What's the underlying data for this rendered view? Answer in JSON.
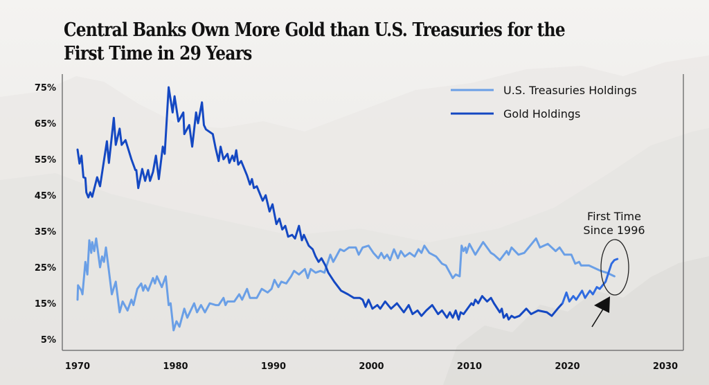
{
  "title": "Central Banks Own More Gold than U.S. Treasuries for the First Time in 29 Years",
  "chart_data": {
    "type": "line",
    "title": "Central Banks Own More Gold than U.S. Treasuries for the First Time in 29 Years",
    "xlabel": "",
    "ylabel": "",
    "xlim": [
      1968.5,
      2032
    ],
    "ylim": [
      2,
      77
    ],
    "x_ticks": [
      1970,
      1980,
      1990,
      2000,
      2010,
      2020,
      2030
    ],
    "x_tick_labels": [
      "1970",
      "1980",
      "1990",
      "2000",
      "2010",
      "2020",
      "2030"
    ],
    "y_ticks": [
      5,
      15,
      25,
      35,
      45,
      55,
      65,
      75
    ],
    "y_tick_labels": [
      "5%",
      "15%",
      "25%",
      "35%",
      "45%",
      "55%",
      "65%",
      "75%"
    ],
    "grid": false,
    "legend_position": "top-right",
    "series": [
      {
        "name": "U.S. Treasuries Holdings",
        "color": "#6a9fe6",
        "points": [
          [
            1970.0,
            16.0
          ],
          [
            1970.05,
            20.0
          ],
          [
            1970.4,
            18.5
          ],
          [
            1970.5,
            17.5
          ],
          [
            1970.8,
            26.5
          ],
          [
            1971.0,
            23.0
          ],
          [
            1971.2,
            32.5
          ],
          [
            1971.4,
            29.0
          ],
          [
            1971.5,
            32.0
          ],
          [
            1971.7,
            29.5
          ],
          [
            1971.9,
            33.0
          ],
          [
            1972.1,
            29.0
          ],
          [
            1972.3,
            25.0
          ],
          [
            1972.5,
            28.0
          ],
          [
            1972.7,
            26.5
          ],
          [
            1972.9,
            30.5
          ],
          [
            1973.2,
            24.0
          ],
          [
            1973.5,
            17.5
          ],
          [
            1973.9,
            21.0
          ],
          [
            1974.3,
            12.5
          ],
          [
            1974.6,
            15.5
          ],
          [
            1975.1,
            13.0
          ],
          [
            1975.5,
            16.0
          ],
          [
            1975.7,
            14.5
          ],
          [
            1976.1,
            19.0
          ],
          [
            1976.5,
            20.5
          ],
          [
            1976.7,
            18.5
          ],
          [
            1976.9,
            20.0
          ],
          [
            1977.2,
            18.5
          ],
          [
            1977.7,
            22.0
          ],
          [
            1977.9,
            20.5
          ],
          [
            1978.1,
            22.5
          ],
          [
            1978.6,
            19.5
          ],
          [
            1979.0,
            22.5
          ],
          [
            1979.3,
            14.5
          ],
          [
            1979.5,
            15.0
          ],
          [
            1979.8,
            7.5
          ],
          [
            1980.1,
            10.0
          ],
          [
            1980.4,
            8.5
          ],
          [
            1980.9,
            13.5
          ],
          [
            1981.2,
            11.0
          ],
          [
            1981.9,
            15.0
          ],
          [
            1982.2,
            12.5
          ],
          [
            1982.6,
            14.5
          ],
          [
            1983.0,
            12.5
          ],
          [
            1983.5,
            15.0
          ],
          [
            1984.1,
            14.5
          ],
          [
            1984.4,
            14.5
          ],
          [
            1984.9,
            16.5
          ],
          [
            1985.1,
            14.5
          ],
          [
            1985.3,
            15.5
          ],
          [
            1986.0,
            15.5
          ],
          [
            1986.5,
            17.5
          ],
          [
            1986.8,
            16.0
          ],
          [
            1987.3,
            19.0
          ],
          [
            1987.6,
            16.5
          ],
          [
            1988.3,
            16.5
          ],
          [
            1988.8,
            19.0
          ],
          [
            1989.4,
            18.0
          ],
          [
            1989.8,
            19.0
          ],
          [
            1990.1,
            21.5
          ],
          [
            1990.5,
            19.5
          ],
          [
            1990.8,
            21.0
          ],
          [
            1991.3,
            20.5
          ],
          [
            1991.8,
            22.5
          ],
          [
            1992.1,
            24.0
          ],
          [
            1992.6,
            23.0
          ],
          [
            1993.2,
            24.5
          ],
          [
            1993.5,
            22.0
          ],
          [
            1993.8,
            24.5
          ],
          [
            1994.3,
            23.5
          ],
          [
            1994.8,
            24.0
          ],
          [
            1995.2,
            23.5
          ],
          [
            1995.5,
            26.0
          ],
          [
            1995.8,
            28.5
          ],
          [
            1996.1,
            26.5
          ],
          [
            1996.4,
            28.0
          ],
          [
            1996.8,
            30.0
          ],
          [
            1997.2,
            29.5
          ],
          [
            1997.7,
            30.5
          ],
          [
            1998.4,
            30.5
          ],
          [
            1998.7,
            28.5
          ],
          [
            1999.1,
            30.5
          ],
          [
            1999.7,
            31.0
          ],
          [
            2000.2,
            29.0
          ],
          [
            2000.7,
            27.5
          ],
          [
            2001.0,
            29.0
          ],
          [
            2001.3,
            27.5
          ],
          [
            2001.6,
            28.5
          ],
          [
            2001.9,
            27.0
          ],
          [
            2002.3,
            30.0
          ],
          [
            2002.7,
            27.5
          ],
          [
            2003.0,
            29.5
          ],
          [
            2003.4,
            28.0
          ],
          [
            2003.9,
            29.0
          ],
          [
            2004.4,
            28.0
          ],
          [
            2004.8,
            30.0
          ],
          [
            2005.1,
            29.0
          ],
          [
            2005.4,
            31.0
          ],
          [
            2005.9,
            29.0
          ],
          [
            2006.6,
            28.0
          ],
          [
            2007.2,
            26.0
          ],
          [
            2007.6,
            25.5
          ],
          [
            2008.3,
            22.0
          ],
          [
            2008.6,
            23.0
          ],
          [
            2009.0,
            22.5
          ],
          [
            2009.2,
            31.0
          ],
          [
            2009.4,
            29.5
          ],
          [
            2009.6,
            30.5
          ],
          [
            2009.7,
            29.0
          ],
          [
            2010.0,
            31.5
          ],
          [
            2010.6,
            28.5
          ],
          [
            2011.4,
            32.0
          ],
          [
            2012.2,
            29.0
          ],
          [
            2012.5,
            28.5
          ],
          [
            2013.1,
            27.0
          ],
          [
            2013.8,
            29.5
          ],
          [
            2014.0,
            28.5
          ],
          [
            2014.3,
            30.5
          ],
          [
            2015.0,
            28.5
          ],
          [
            2015.6,
            29.0
          ],
          [
            2016.8,
            33.0
          ],
          [
            2017.2,
            30.5
          ],
          [
            2018.0,
            31.5
          ],
          [
            2018.8,
            29.5
          ],
          [
            2019.2,
            30.5
          ],
          [
            2019.7,
            28.5
          ],
          [
            2020.4,
            28.5
          ],
          [
            2020.8,
            26.0
          ],
          [
            2021.2,
            26.5
          ],
          [
            2021.4,
            25.5
          ],
          [
            2022.2,
            25.5
          ],
          [
            2023.0,
            24.5
          ],
          [
            2023.4,
            24.0
          ],
          [
            2024.0,
            23.5
          ],
          [
            2024.4,
            23.0
          ],
          [
            2024.8,
            22.5
          ]
        ]
      },
      {
        "name": "Gold Holdings",
        "color": "#1448c2",
        "color_recent": "#2f6be0",
        "points": [
          [
            1970.0,
            57.7
          ],
          [
            1970.2,
            53.8
          ],
          [
            1970.4,
            56.0
          ],
          [
            1970.6,
            50.0
          ],
          [
            1970.8,
            49.8
          ],
          [
            1970.9,
            45.8
          ],
          [
            1971.1,
            44.4
          ],
          [
            1971.3,
            45.8
          ],
          [
            1971.5,
            44.6
          ],
          [
            1972.0,
            50.0
          ],
          [
            1972.3,
            47.5
          ],
          [
            1973.0,
            60.0
          ],
          [
            1973.2,
            54.0
          ],
          [
            1973.7,
            66.5
          ],
          [
            1973.9,
            59.0
          ],
          [
            1974.3,
            63.5
          ],
          [
            1974.5,
            59.0
          ],
          [
            1974.9,
            60.3
          ],
          [
            1975.5,
            55.0
          ],
          [
            1975.9,
            52.0
          ],
          [
            1976.0,
            52.0
          ],
          [
            1976.2,
            47.0
          ],
          [
            1976.6,
            52.3
          ],
          [
            1976.9,
            49.0
          ],
          [
            1977.2,
            52.0
          ],
          [
            1977.4,
            49.0
          ],
          [
            1977.7,
            51.5
          ],
          [
            1978.0,
            56.0
          ],
          [
            1978.3,
            49.5
          ],
          [
            1978.7,
            58.5
          ],
          [
            1978.9,
            56.5
          ],
          [
            1979.3,
            75.0
          ],
          [
            1979.7,
            68.0
          ],
          [
            1979.9,
            72.5
          ],
          [
            1980.3,
            65.5
          ],
          [
            1980.8,
            68.0
          ],
          [
            1980.9,
            62.0
          ],
          [
            1981.4,
            64.5
          ],
          [
            1981.7,
            58.5
          ],
          [
            1982.1,
            68.0
          ],
          [
            1982.3,
            65.0
          ],
          [
            1982.7,
            70.8
          ],
          [
            1982.9,
            64.5
          ],
          [
            1983.1,
            63.3
          ],
          [
            1983.8,
            62.0
          ],
          [
            1984.1,
            58.0
          ],
          [
            1984.4,
            54.5
          ],
          [
            1984.6,
            58.5
          ],
          [
            1984.9,
            55.0
          ],
          [
            1985.3,
            56.5
          ],
          [
            1985.5,
            54.0
          ],
          [
            1985.8,
            56.0
          ],
          [
            1986.0,
            54.5
          ],
          [
            1986.2,
            57.5
          ],
          [
            1986.4,
            53.5
          ],
          [
            1986.7,
            54.5
          ],
          [
            1987.3,
            50.5
          ],
          [
            1987.6,
            48.0
          ],
          [
            1987.8,
            49.5
          ],
          [
            1988.0,
            47.0
          ],
          [
            1988.3,
            47.5
          ],
          [
            1988.9,
            43.5
          ],
          [
            1989.2,
            45.0
          ],
          [
            1989.6,
            40.5
          ],
          [
            1989.9,
            42.5
          ],
          [
            1990.3,
            37.0
          ],
          [
            1990.6,
            38.5
          ],
          [
            1990.9,
            35.5
          ],
          [
            1991.2,
            36.5
          ],
          [
            1991.5,
            33.5
          ],
          [
            1991.9,
            34.0
          ],
          [
            1992.2,
            33.0
          ],
          [
            1992.6,
            36.5
          ],
          [
            1992.9,
            32.5
          ],
          [
            1993.1,
            34.0
          ],
          [
            1993.6,
            31.0
          ],
          [
            1994.0,
            30.0
          ],
          [
            1994.3,
            28.0
          ],
          [
            1994.6,
            26.5
          ],
          [
            1994.9,
            27.5
          ],
          [
            1995.3,
            25.5
          ],
          [
            1995.6,
            23.5
          ],
          [
            1996.2,
            21.0
          ],
          [
            1996.9,
            18.5
          ],
          [
            1997.6,
            17.5
          ],
          [
            1998.2,
            16.5
          ],
          [
            1998.8,
            16.5
          ],
          [
            1999.1,
            16.0
          ],
          [
            1999.4,
            14.0
          ],
          [
            1999.7,
            16.0
          ],
          [
            2000.1,
            13.5
          ],
          [
            2000.6,
            14.5
          ],
          [
            2000.9,
            13.5
          ],
          [
            2001.4,
            15.5
          ],
          [
            2002.0,
            13.5
          ],
          [
            2002.6,
            15.0
          ],
          [
            2003.3,
            12.5
          ],
          [
            2003.8,
            14.5
          ],
          [
            2004.2,
            12.0
          ],
          [
            2004.7,
            13.0
          ],
          [
            2005.1,
            11.5
          ],
          [
            2005.6,
            13.0
          ],
          [
            2006.2,
            14.5
          ],
          [
            2006.8,
            12.0
          ],
          [
            2007.2,
            13.0
          ],
          [
            2007.7,
            11.0
          ],
          [
            2008.0,
            12.5
          ],
          [
            2008.3,
            11.0
          ],
          [
            2008.6,
            13.0
          ],
          [
            2008.9,
            10.5
          ],
          [
            2009.1,
            12.5
          ],
          [
            2009.4,
            12.0
          ],
          [
            2009.8,
            13.5
          ],
          [
            2010.2,
            15.0
          ],
          [
            2010.4,
            14.5
          ],
          [
            2010.6,
            16.0
          ],
          [
            2010.9,
            15.0
          ],
          [
            2011.3,
            17.0
          ],
          [
            2011.8,
            15.5
          ],
          [
            2012.2,
            16.5
          ],
          [
            2012.5,
            15.0
          ],
          [
            2013.1,
            12.5
          ],
          [
            2013.3,
            13.5
          ],
          [
            2013.5,
            11.0
          ],
          [
            2013.8,
            12.0
          ],
          [
            2014.0,
            10.5
          ],
          [
            2014.3,
            11.5
          ],
          [
            2014.6,
            11.0
          ],
          [
            2015.1,
            11.5
          ],
          [
            2015.8,
            13.5
          ],
          [
            2016.3,
            12.0
          ],
          [
            2017.0,
            13.0
          ],
          [
            2017.9,
            12.5
          ],
          [
            2018.4,
            11.5
          ],
          [
            2019.0,
            13.5
          ],
          [
            2019.5,
            15.0
          ],
          [
            2019.9,
            18.0
          ],
          [
            2020.2,
            15.5
          ],
          [
            2020.6,
            17.0
          ],
          [
            2020.9,
            16.0
          ],
          [
            2021.5,
            18.5
          ],
          [
            2021.8,
            16.5
          ],
          [
            2022.3,
            18.5
          ],
          [
            2022.6,
            17.5
          ],
          [
            2023.0,
            19.5
          ],
          [
            2023.3,
            19.0
          ],
          [
            2023.6,
            20.0
          ],
          [
            2023.9,
            21.0
          ],
          [
            2024.2,
            23.5
          ],
          [
            2024.5,
            26.0
          ],
          [
            2024.8,
            27.0
          ],
          [
            2025.1,
            27.3
          ]
        ],
        "recent_from_year": 2019.8
      }
    ],
    "annotations": [
      {
        "text_lines": [
          "First Time",
          "Since 1996"
        ],
        "target_year": 2024.6,
        "target_value": 24.5,
        "shape": "ellipse-with-arrow"
      }
    ]
  }
}
